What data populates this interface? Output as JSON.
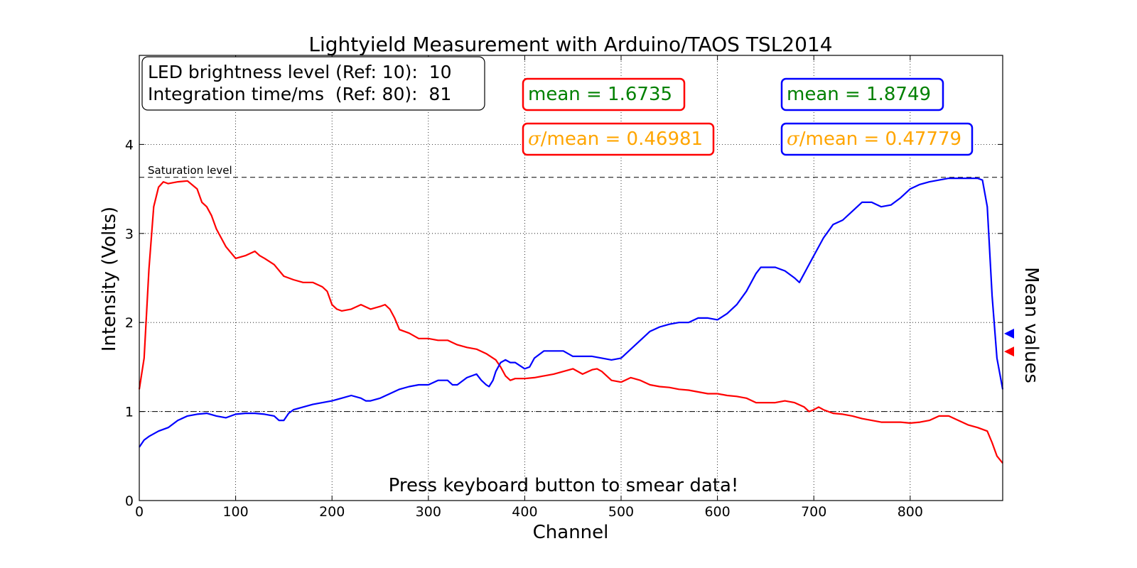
{
  "chart_data": {
    "type": "line",
    "title": "Lightyield Measurement with Arduino/TAOS TSL2014",
    "xlabel": "Channel",
    "ylabel": "Intensity (Volts)",
    "right_label": "Mean values",
    "xlim": [
      0,
      896
    ],
    "ylim": [
      0,
      5
    ],
    "xticks": [
      0,
      100,
      200,
      300,
      400,
      500,
      600,
      700,
      800
    ],
    "yticks": [
      0,
      1,
      2,
      3,
      4
    ],
    "grid": true,
    "info_box": {
      "line1": "LED brightness level (Ref: 10):  10",
      "line2": "Integration time/ms  (Ref: 80):  81"
    },
    "saturation": {
      "label": "Saturation level",
      "value": 3.63
    },
    "reference_line": 1.0,
    "instruction": "Press keyboard button to smear data!",
    "series": [
      {
        "color": "#ff0000",
        "mean_label": "mean = 1.6735",
        "sigma_label": "/mean = 0.46981",
        "mean": 1.6735,
        "x": [
          0,
          5,
          10,
          15,
          20,
          25,
          30,
          40,
          50,
          60,
          65,
          70,
          75,
          80,
          90,
          100,
          110,
          120,
          125,
          130,
          140,
          150,
          160,
          170,
          180,
          190,
          195,
          200,
          205,
          210,
          220,
          230,
          240,
          250,
          255,
          260,
          265,
          270,
          280,
          290,
          300,
          310,
          320,
          330,
          340,
          350,
          360,
          370,
          375,
          380,
          385,
          390,
          400,
          410,
          420,
          430,
          440,
          450,
          460,
          470,
          475,
          480,
          490,
          500,
          510,
          520,
          530,
          540,
          550,
          560,
          570,
          580,
          590,
          600,
          610,
          620,
          630,
          640,
          650,
          660,
          670,
          680,
          690,
          695,
          700,
          705,
          710,
          720,
          730,
          740,
          750,
          760,
          770,
          780,
          790,
          800,
          810,
          820,
          830,
          840,
          850,
          860,
          870,
          880,
          885,
          890,
          896
        ],
        "y": [
          1.25,
          1.6,
          2.6,
          3.3,
          3.52,
          3.58,
          3.56,
          3.58,
          3.59,
          3.5,
          3.35,
          3.3,
          3.2,
          3.05,
          2.85,
          2.72,
          2.75,
          2.8,
          2.75,
          2.72,
          2.65,
          2.52,
          2.48,
          2.45,
          2.45,
          2.4,
          2.35,
          2.2,
          2.15,
          2.13,
          2.15,
          2.2,
          2.15,
          2.18,
          2.2,
          2.15,
          2.05,
          1.92,
          1.88,
          1.82,
          1.82,
          1.8,
          1.8,
          1.75,
          1.72,
          1.7,
          1.65,
          1.58,
          1.5,
          1.4,
          1.35,
          1.37,
          1.37,
          1.38,
          1.4,
          1.42,
          1.45,
          1.48,
          1.42,
          1.47,
          1.48,
          1.45,
          1.35,
          1.33,
          1.38,
          1.35,
          1.3,
          1.28,
          1.27,
          1.25,
          1.24,
          1.22,
          1.2,
          1.2,
          1.18,
          1.17,
          1.15,
          1.1,
          1.1,
          1.1,
          1.12,
          1.1,
          1.05,
          1.0,
          1.02,
          1.05,
          1.02,
          0.98,
          0.97,
          0.95,
          0.92,
          0.9,
          0.88,
          0.88,
          0.88,
          0.87,
          0.88,
          0.9,
          0.95,
          0.95,
          0.9,
          0.85,
          0.82,
          0.78,
          0.65,
          0.5,
          0.42
        ]
      },
      {
        "color": "#0000ff",
        "mean_label": "mean = 1.8749",
        "sigma_label": "/mean = 0.47779",
        "mean": 1.8749,
        "x": [
          0,
          5,
          10,
          20,
          30,
          40,
          50,
          60,
          70,
          80,
          90,
          100,
          110,
          120,
          130,
          140,
          145,
          150,
          155,
          160,
          170,
          180,
          190,
          200,
          210,
          220,
          230,
          235,
          240,
          250,
          260,
          270,
          280,
          290,
          300,
          310,
          320,
          325,
          330,
          340,
          350,
          355,
          360,
          363,
          367,
          370,
          375,
          380,
          385,
          390,
          400,
          405,
          410,
          420,
          430,
          440,
          450,
          460,
          470,
          480,
          490,
          500,
          510,
          520,
          530,
          540,
          550,
          560,
          570,
          580,
          590,
          600,
          610,
          620,
          630,
          640,
          645,
          650,
          660,
          670,
          680,
          685,
          690,
          700,
          710,
          720,
          730,
          740,
          750,
          760,
          770,
          780,
          790,
          800,
          810,
          820,
          830,
          840,
          850,
          860,
          870,
          875,
          880,
          885,
          890,
          896
        ],
        "y": [
          0.6,
          0.68,
          0.72,
          0.78,
          0.82,
          0.9,
          0.95,
          0.97,
          0.98,
          0.95,
          0.93,
          0.97,
          0.98,
          0.98,
          0.97,
          0.95,
          0.9,
          0.9,
          0.98,
          1.02,
          1.05,
          1.08,
          1.1,
          1.12,
          1.15,
          1.18,
          1.15,
          1.12,
          1.12,
          1.15,
          1.2,
          1.25,
          1.28,
          1.3,
          1.3,
          1.35,
          1.35,
          1.3,
          1.3,
          1.38,
          1.42,
          1.35,
          1.3,
          1.28,
          1.35,
          1.45,
          1.55,
          1.58,
          1.55,
          1.55,
          1.48,
          1.5,
          1.6,
          1.68,
          1.68,
          1.68,
          1.62,
          1.62,
          1.62,
          1.6,
          1.58,
          1.6,
          1.7,
          1.8,
          1.9,
          1.95,
          1.98,
          2.0,
          2.0,
          2.05,
          2.05,
          2.03,
          2.1,
          2.2,
          2.35,
          2.55,
          2.62,
          2.62,
          2.62,
          2.58,
          2.5,
          2.45,
          2.55,
          2.75,
          2.95,
          3.1,
          3.15,
          3.25,
          3.35,
          3.35,
          3.3,
          3.32,
          3.4,
          3.5,
          3.55,
          3.58,
          3.6,
          3.62,
          3.62,
          3.62,
          3.62,
          3.6,
          3.3,
          2.3,
          1.6,
          1.25
        ]
      }
    ]
  }
}
